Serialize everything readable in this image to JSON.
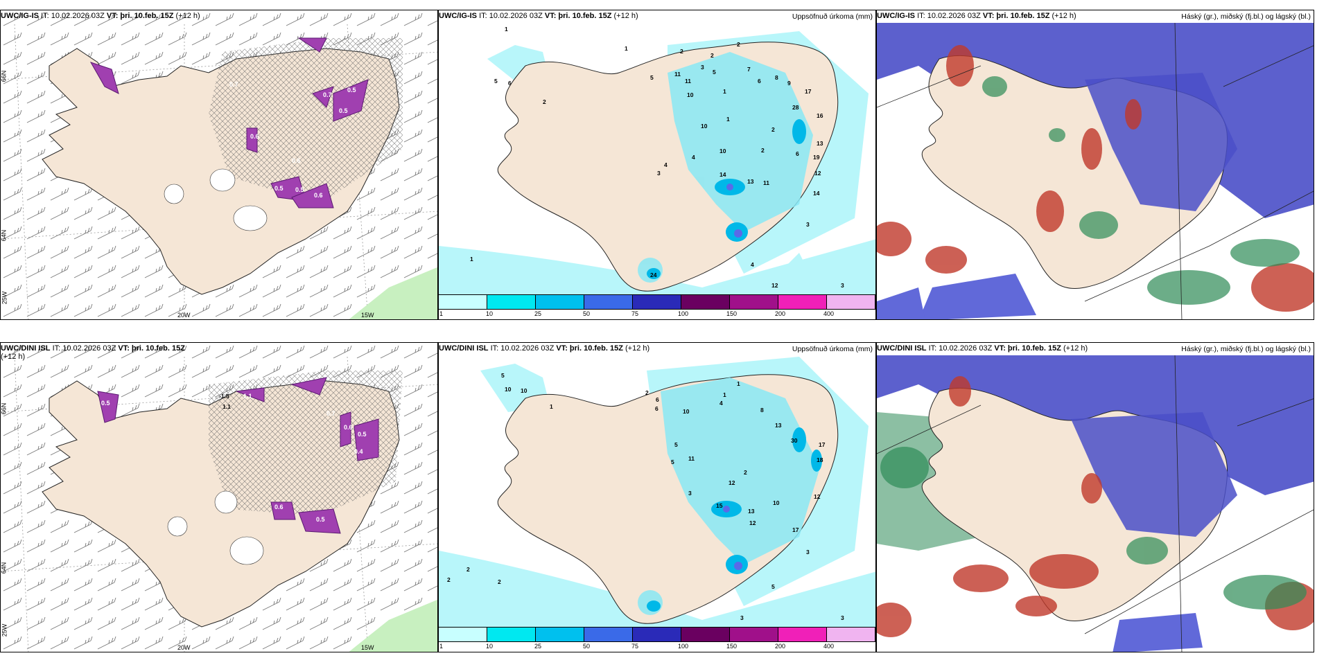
{
  "panels": [
    {
      "id": "r1c1",
      "title_model": "UWC/IG-IS",
      "title_it": "IT: 10.02.2026 03Z",
      "title_vt": "VT: þri. 10.feb. 15Z",
      "title_lead": "(+12 h)",
      "right": "",
      "lon_labels": [
        "20W",
        "15W"
      ],
      "lat_labels": [
        "66N",
        "64N",
        "25W"
      ],
      "values": [
        "0.5",
        "0.7",
        "0.6",
        "0.5",
        "0.6",
        "0.5",
        "0.5",
        "0.6",
        "0.7"
      ]
    },
    {
      "id": "r1c2",
      "title_model": "UWC/IG-IS",
      "title_it": "IT: 10.02.2026 03Z",
      "title_vt": "VT: þri. 10.feb. 15Z",
      "title_lead": "(+12 h)",
      "right": "Uppsöfnuð úrkoma (mm)",
      "values": [
        "1",
        "1",
        "2",
        "2",
        "2",
        "3",
        "5",
        "11",
        "11",
        "5",
        "7",
        "6",
        "8",
        "9",
        "17",
        "28",
        "16",
        "13",
        "12",
        "19",
        "14",
        "13",
        "11",
        "10",
        "10",
        "10",
        "14",
        "4",
        "1",
        "12",
        "3",
        "24",
        "4",
        "3",
        "3",
        "2",
        "1",
        "5",
        "6",
        "1",
        "2",
        "6",
        "4",
        "2"
      ]
    },
    {
      "id": "r1c3",
      "title_model": "UWC/IG-IS",
      "title_it": "IT: 10.02.2026 03Z",
      "title_vt": "VT: þri. 10.feb. 15Z",
      "title_lead": "(+12 h)",
      "right": "Háský (gr.), miðský (fj.bl.) og lágský (bl.)"
    },
    {
      "id": "r2c1",
      "title_model": "UWC/DINI ISL",
      "title_it": "IT: 10.02.2026 03Z",
      "title_vt": "VT: þri. 10.feb. 15Z",
      "title_lead": "(+12",
      "title_wrap": "h)",
      "right": "",
      "lon_labels": [
        "20W",
        "15W"
      ],
      "lat_labels": [
        "66N",
        "64N",
        "25W"
      ],
      "values": [
        "0.5",
        "1.1",
        "0.7",
        "0.6",
        "0.5",
        "0.5",
        "0.6",
        "0.4",
        "-1.5",
        "1.1"
      ]
    },
    {
      "id": "r2c2",
      "title_model": "UWC/DINI ISL",
      "title_it": "IT: 10.02.2026 03Z",
      "title_vt": "VT: þri. 10.feb. 15Z",
      "title_lead": "(+12 h)",
      "right": "Uppsöfnuð úrkoma (mm)",
      "values": [
        "5",
        "10",
        "10",
        "1",
        "2",
        "6",
        "10",
        "8",
        "13",
        "30",
        "17",
        "18",
        "12",
        "12",
        "11",
        "5",
        "2",
        "3",
        "5",
        "15",
        "13",
        "12",
        "10",
        "17",
        "3",
        "5",
        "3",
        "3",
        "2",
        "2",
        "2",
        "1",
        "1",
        "6",
        "4"
      ]
    },
    {
      "id": "r2c3",
      "title_model": "UWC/DINI ISL",
      "title_it": "IT: 10.02.2026 03Z",
      "title_vt": "VT: þri. 10.feb. 15Z",
      "title_lead": "(+12 h)",
      "right": "Háský (gr.), miðský (fj.bl.) og lágský (bl.)"
    }
  ],
  "colorbar": {
    "ticks": [
      "1",
      "10",
      "25",
      "50",
      "75",
      "100",
      "150",
      "200",
      "400"
    ],
    "colors": [
      "#c8ffff",
      "#00e8f0",
      "#00c0ee",
      "#3a6ae8",
      "#2a2ab8",
      "#6a0060",
      "#a0108a",
      "#f020b8",
      "#f0b4f0"
    ]
  },
  "colors": {
    "land": "#f5e6d6",
    "sea": "#ffffff",
    "precip_light": "#b8f6fa",
    "precip_mid": "#88e8f4",
    "high_cloud": "#2e8b57",
    "mid_cloud": "#c0392b",
    "low_cloud": "#3b3fb8"
  }
}
